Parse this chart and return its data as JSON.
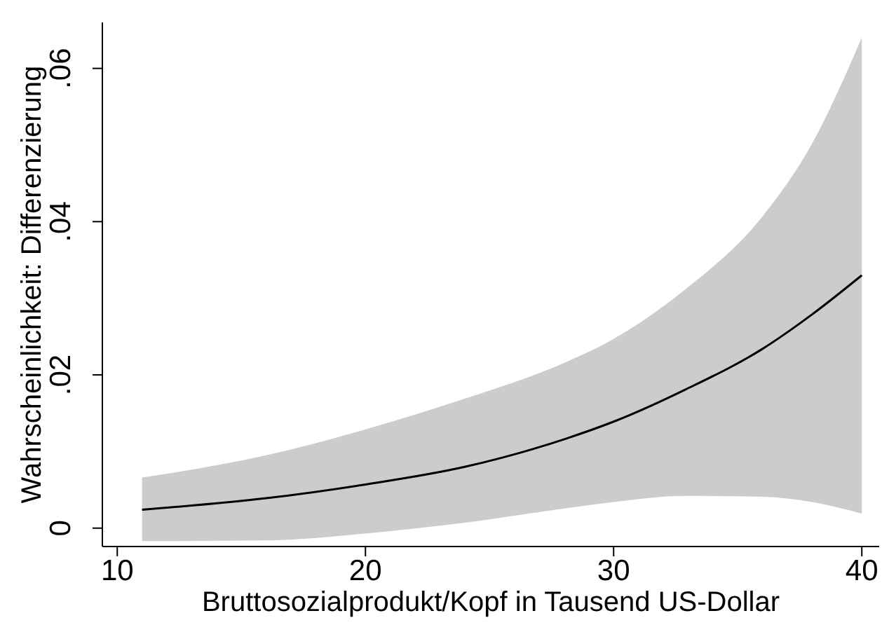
{
  "chart_data": {
    "type": "line",
    "xlabel": "Bruttosozialprodukt/Kopf in Tausend US-Dollar",
    "ylabel": "Wahrscheinlichkeit: Differenzierung",
    "x": [
      11,
      16,
      20,
      24,
      28.1,
      30,
      32.9,
      36,
      38,
      40
    ],
    "series": [
      {
        "color": "#000000",
        "values": [
          0.0024,
          0.0039,
          0.0057,
          0.008,
          0.0117,
          0.0139,
          0.0181,
          0.0234,
          0.0279,
          0.033
        ],
        "lower": [
          -0.0017,
          -0.0016,
          -0.0007,
          0.0007,
          0.0026,
          0.0034,
          0.0042,
          0.0041,
          0.0034,
          0.0019
        ],
        "upper": [
          0.0066,
          0.0095,
          0.0129,
          0.0169,
          0.0217,
          0.0247,
          0.0312,
          0.0407,
          0.0502,
          0.064
        ]
      }
    ],
    "xlim": [
      9.4,
      40.7
    ],
    "ylim": [
      -0.0024,
      0.066
    ],
    "xticks": [
      10,
      20,
      30,
      40
    ],
    "yticks": [
      0,
      {
        "value": 0.02,
        "label": ".02"
      },
      {
        "value": 0.04,
        "label": ".04"
      },
      {
        "value": 0.06,
        "label": ".06"
      }
    ],
    "marker": "none"
  }
}
